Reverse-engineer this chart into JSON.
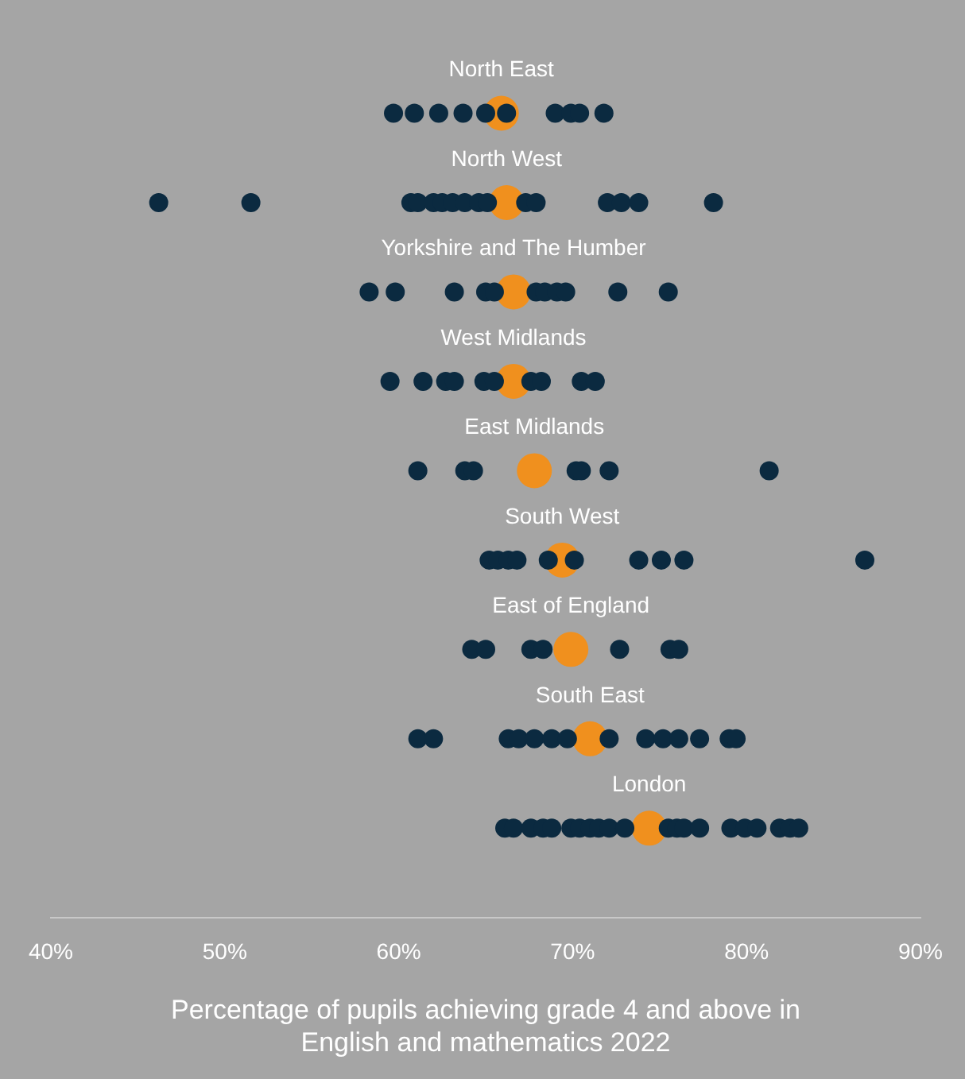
{
  "chart_data": {
    "type": "scatter",
    "orientation": "horizontal",
    "xlabel": "Percentage of pupils achieving grade 4 and above in\nEnglish and mathematics 2022",
    "categories": [
      "North East",
      "North West",
      "Yorkshire and The Humber",
      "West Midlands",
      "East Midlands",
      "South West",
      "East of England",
      "South East",
      "London"
    ],
    "xlim": [
      40,
      90
    ],
    "xticks": [
      {
        "value": 40,
        "label": "40%"
      },
      {
        "value": 50,
        "label": "50%"
      },
      {
        "value": 60,
        "label": "60%"
      },
      {
        "value": 70,
        "label": "70%"
      },
      {
        "value": 80,
        "label": "80%"
      },
      {
        "value": 90,
        "label": "90%"
      }
    ],
    "grid": false,
    "legend": false,
    "tick_labels": "x",
    "marker": "circle",
    "series": [
      {
        "color": "#0b2a40",
        "x": [
          "North East",
          "North East",
          "North East",
          "North East",
          "North East",
          "North East",
          "North East",
          "North East",
          "North East",
          "North East",
          "North West",
          "North West",
          "North West",
          "North West",
          "North West",
          "North West",
          "North West",
          "North West",
          "North West",
          "North West",
          "North West",
          "North West",
          "North West",
          "North West",
          "North West",
          "North West",
          "Yorkshire and The Humber",
          "Yorkshire and The Humber",
          "Yorkshire and The Humber",
          "Yorkshire and The Humber",
          "Yorkshire and The Humber",
          "Yorkshire and The Humber",
          "Yorkshire and The Humber",
          "Yorkshire and The Humber",
          "Yorkshire and The Humber",
          "Yorkshire and The Humber",
          "Yorkshire and The Humber",
          "West Midlands",
          "West Midlands",
          "West Midlands",
          "West Midlands",
          "West Midlands",
          "West Midlands",
          "West Midlands",
          "West Midlands",
          "West Midlands",
          "West Midlands",
          "East Midlands",
          "East Midlands",
          "East Midlands",
          "East Midlands",
          "East Midlands",
          "East Midlands",
          "East Midlands",
          "South West",
          "South West",
          "South West",
          "South West",
          "South West",
          "South West",
          "South West",
          "South West",
          "South West",
          "South West",
          "East of England",
          "East of England",
          "East of England",
          "East of England",
          "East of England",
          "East of England",
          "East of England",
          "South East",
          "South East",
          "South East",
          "South East",
          "South East",
          "South East",
          "South East",
          "South East",
          "South East",
          "South East",
          "South East",
          "South East",
          "South East",
          "South East",
          "London",
          "London",
          "London",
          "London",
          "London",
          "London",
          "London",
          "London",
          "London",
          "London",
          "London",
          "London",
          "London",
          "London",
          "London",
          "London",
          "London",
          "London",
          "London",
          "London",
          "London"
        ],
        "values": [
          59.7,
          60.9,
          62.3,
          63.7,
          65.0,
          66.2,
          69.0,
          69.9,
          70.4,
          71.8,
          46.2,
          51.5,
          60.7,
          61.1,
          62.0,
          62.5,
          63.1,
          63.8,
          64.6,
          65.1,
          67.3,
          67.9,
          72.0,
          72.8,
          73.8,
          78.1,
          58.3,
          59.8,
          63.2,
          65.0,
          65.5,
          67.9,
          68.4,
          69.1,
          69.6,
          72.6,
          75.5,
          59.5,
          61.4,
          62.7,
          63.2,
          64.9,
          65.5,
          67.6,
          68.2,
          70.5,
          71.3,
          61.1,
          63.8,
          64.3,
          70.2,
          70.5,
          72.1,
          81.3,
          65.2,
          65.7,
          66.3,
          66.8,
          68.6,
          70.1,
          73.8,
          75.1,
          76.4,
          86.8,
          64.2,
          65.0,
          67.6,
          68.3,
          72.7,
          75.6,
          76.1,
          61.1,
          62.0,
          66.3,
          66.9,
          67.8,
          68.8,
          69.7,
          72.1,
          74.2,
          75.2,
          76.1,
          77.3,
          79.0,
          79.4,
          66.1,
          66.6,
          67.6,
          68.3,
          68.8,
          69.9,
          70.4,
          71.0,
          71.5,
          72.1,
          73.0,
          75.5,
          76.0,
          76.4,
          77.3,
          79.1,
          79.9,
          80.6,
          81.9,
          82.5,
          83.0
        ]
      },
      {
        "color": "#f0901e",
        "x": [
          "North East",
          "North West",
          "Yorkshire and The Humber",
          "West Midlands",
          "East Midlands",
          "South West",
          "East of England",
          "South East",
          "London"
        ],
        "values": [
          65.9,
          66.2,
          66.6,
          66.6,
          67.8,
          69.4,
          69.9,
          71.0,
          74.4
        ]
      }
    ]
  }
}
